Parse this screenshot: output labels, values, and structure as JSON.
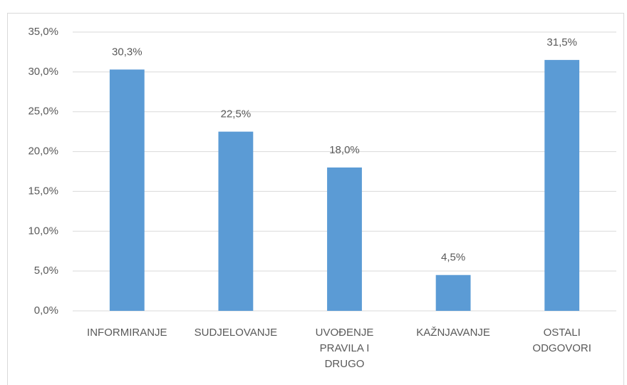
{
  "chart_data": {
    "type": "bar",
    "categories": [
      "INFORMIRANJE",
      "SUDJELOVANJE",
      "UVOĐENJE PRAVILA I DRUGO",
      "KAŽNJAVANJE",
      "OSTALI ODGOVORI"
    ],
    "values": [
      30.3,
      22.5,
      18.0,
      4.5,
      31.5
    ],
    "value_labels": [
      "30,3%",
      "22,5%",
      "18,0%",
      "4,5%",
      "31,5%"
    ],
    "color": "#5b9bd5",
    "ylim": [
      0,
      35
    ],
    "yticks": [
      {
        "value": 0,
        "label": "0,0%"
      },
      {
        "value": 5,
        "label": "5,0%"
      },
      {
        "value": 10,
        "label": "10,0%"
      },
      {
        "value": 15,
        "label": "15,0%"
      },
      {
        "value": 20,
        "label": "20,0%"
      },
      {
        "value": 25,
        "label": "25,0%"
      },
      {
        "value": 30,
        "label": "30,0%"
      },
      {
        "value": 35,
        "label": "35,0%"
      }
    ],
    "grid": true
  }
}
